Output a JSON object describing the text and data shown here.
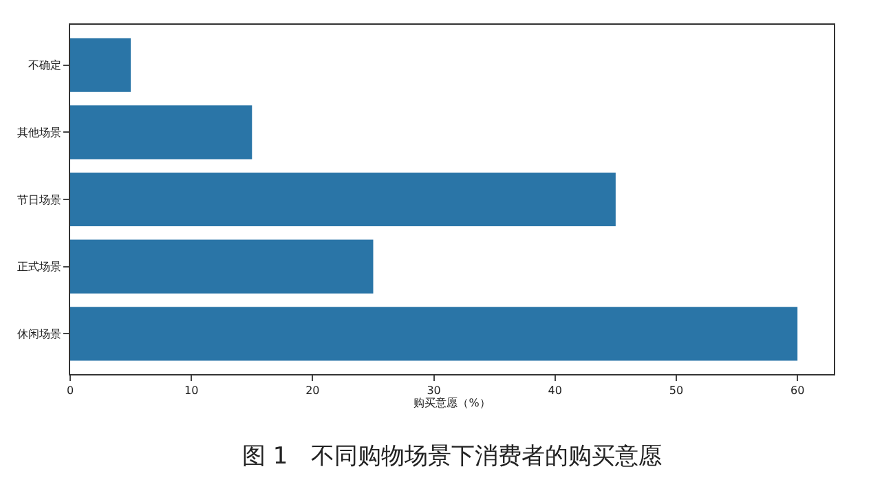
{
  "chart_data": {
    "type": "bar",
    "orientation": "horizontal",
    "title": "图 1　不同购物场景下消费者的购买意愿",
    "xlabel": "购买意愿（%）",
    "categories": [
      "不确定",
      "其他场景",
      "节日场景",
      "正式场景",
      "休闲场景"
    ],
    "values": [
      5,
      15,
      45,
      25,
      60
    ],
    "color": "#2a75a7",
    "xlim": [
      0,
      63
    ],
    "xticks": [
      0,
      10,
      20,
      30,
      40,
      50,
      60
    ]
  }
}
